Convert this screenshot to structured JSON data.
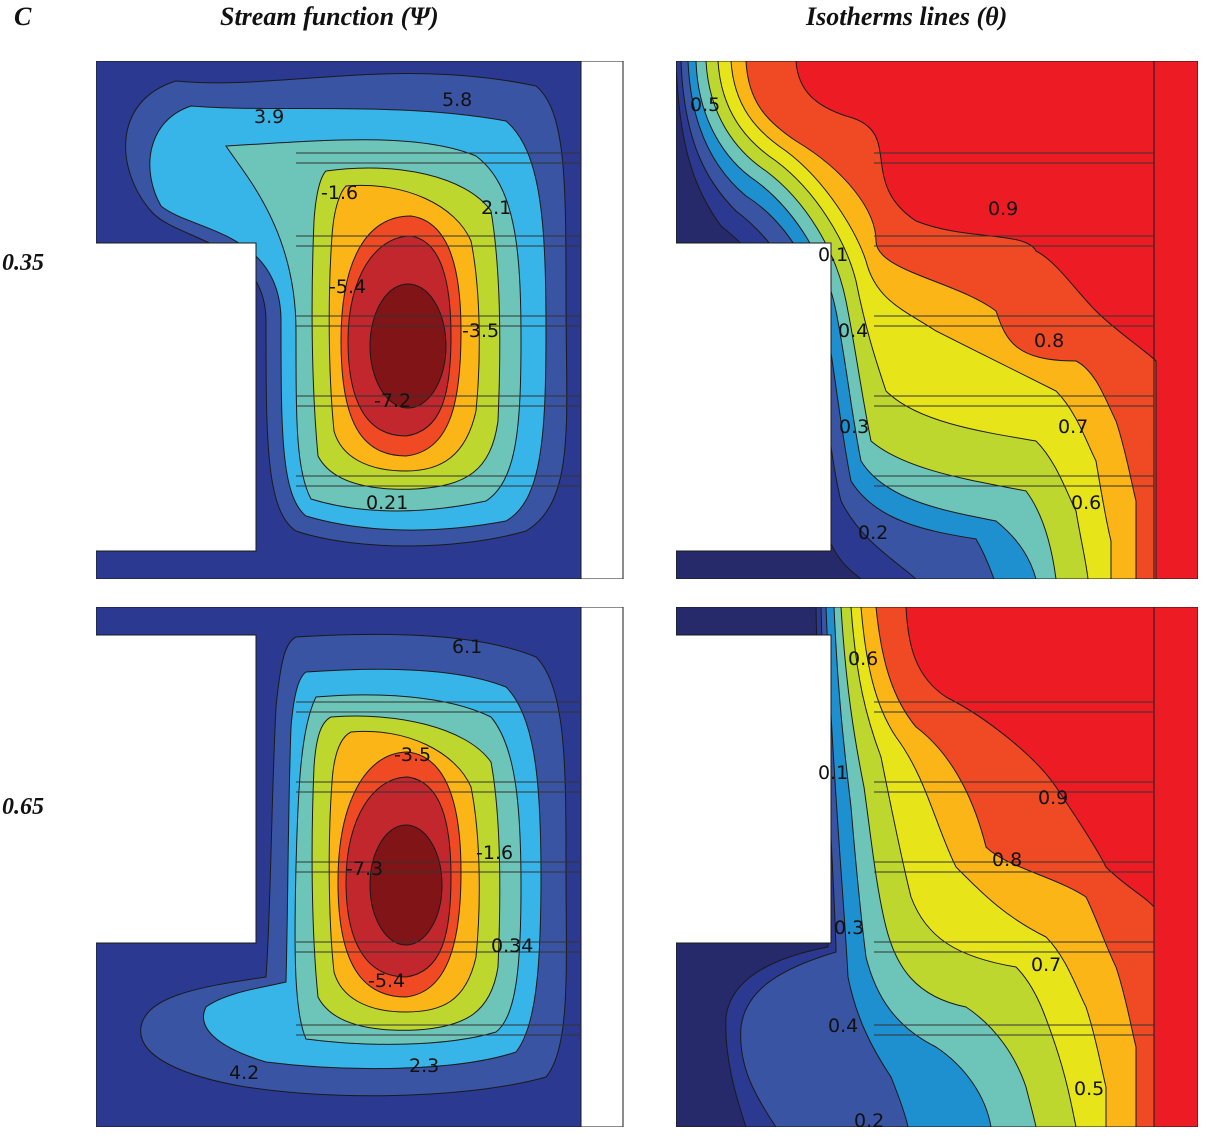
{
  "headers": {
    "corner": "C",
    "stream": "Stream function (Ψ)",
    "isotherm": "Isotherms lines (θ)"
  },
  "rows": [
    {
      "label": "0.35",
      "stream_labels": [
        "5.8",
        "3.9",
        "2.1",
        "-1.6",
        "-5.4",
        "-3.5",
        "-7.2",
        "0.21"
      ],
      "iso_labels": [
        "0.5",
        "0.9",
        "0.1",
        "0.4",
        "0.8",
        "0.3",
        "0.7",
        "0.6",
        "0.2"
      ]
    },
    {
      "label": "0.65",
      "stream_labels": [
        "6.1",
        "-3.5",
        "-1.6",
        "-7.3",
        "0.34",
        "-5.4",
        "4.2",
        "2.3"
      ],
      "iso_labels": [
        "0.6",
        "0.1",
        "0.9",
        "0.8",
        "0.3",
        "0.7",
        "0.4",
        "0.5",
        "0.2"
      ]
    }
  ],
  "colormap": [
    "#2b3990",
    "#3a54a4",
    "#37b4e8",
    "#6cc5b8",
    "#bed72f",
    "#fbb516",
    "#ef4a23",
    "#c1272d",
    "#801417",
    "#262a6a",
    "#1e8fcf",
    "#e8e41a",
    "#ed1c24"
  ]
}
